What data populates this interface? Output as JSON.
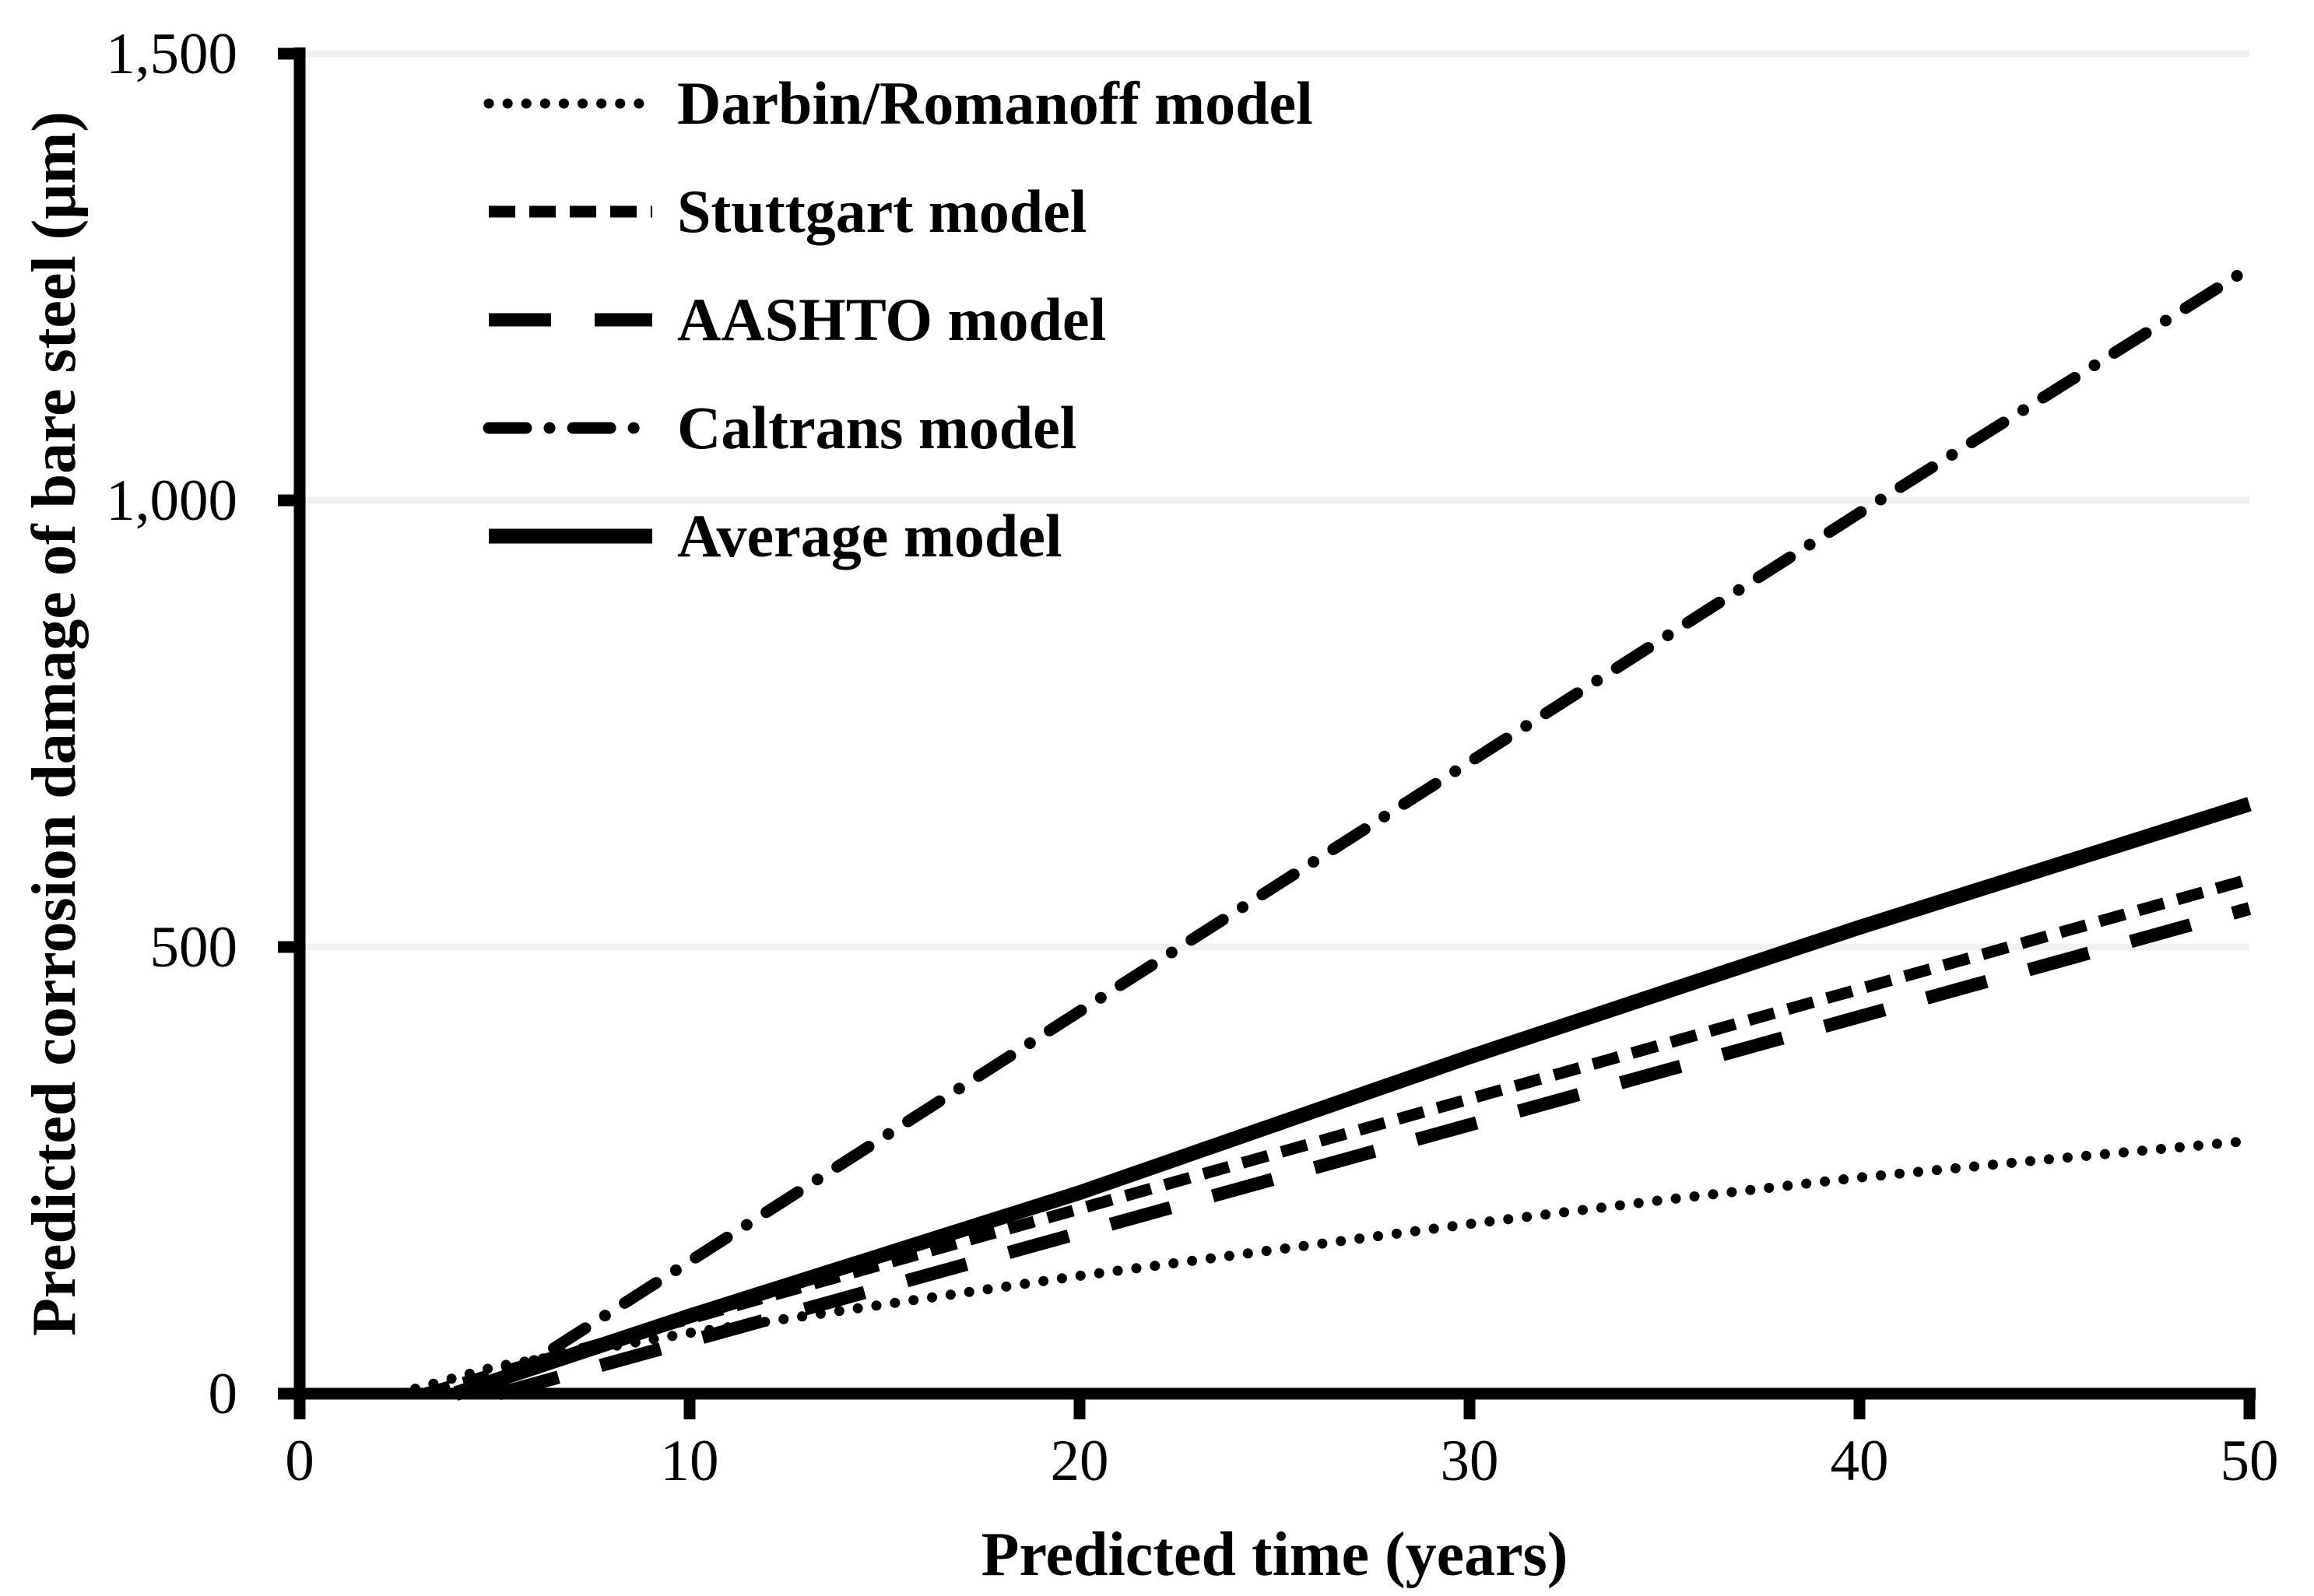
{
  "figure": {
    "background_color": "#ffffff",
    "axis_color": "#000000",
    "gridline_color": "#f0f0f0",
    "line_color": "#000000"
  },
  "chart_data": {
    "type": "line",
    "title": "",
    "xlabel": "Predicted time (years)",
    "ylabel": "Predicted corrosion damage of bare steel (μm)",
    "xlim": [
      0,
      50
    ],
    "ylim": [
      0,
      1500
    ],
    "grid": "horizontal-only",
    "legend_position": "top-left-inside",
    "x_ticks": [
      {
        "value": 0,
        "label": "0"
      },
      {
        "value": 10,
        "label": "10"
      },
      {
        "value": 20,
        "label": "20"
      },
      {
        "value": 30,
        "label": "30"
      },
      {
        "value": 40,
        "label": "40"
      },
      {
        "value": 50,
        "label": "50"
      }
    ],
    "y_ticks": [
      {
        "value": 0,
        "label": "0"
      },
      {
        "value": 500,
        "label": "500"
      },
      {
        "value": 1000,
        "label": "1,000"
      },
      {
        "value": 1500,
        "label": "1,500"
      }
    ],
    "series": [
      {
        "name": "Darbin/Romanoff model",
        "line_style": "dotted",
        "points": [
          [
            2.5,
            0
          ],
          [
            5,
            30
          ],
          [
            10,
            68
          ],
          [
            15,
            100
          ],
          [
            20,
            132
          ],
          [
            25,
            161
          ],
          [
            30,
            190
          ],
          [
            35,
            217
          ],
          [
            40,
            242
          ],
          [
            45,
            263
          ],
          [
            50,
            283
          ]
        ]
      },
      {
        "name": "Stuttgart model",
        "line_style": "dash",
        "points": [
          [
            3.2,
            0
          ],
          [
            10,
            84
          ],
          [
            20,
            207
          ],
          [
            30,
            330
          ],
          [
            40,
            453
          ],
          [
            50,
            576
          ]
        ]
      },
      {
        "name": "AASHTO model",
        "line_style": "long-dash",
        "points": [
          [
            5.1,
            0
          ],
          [
            10,
            59
          ],
          [
            20,
            180
          ],
          [
            30,
            301
          ],
          [
            40,
            422
          ],
          [
            50,
            543
          ]
        ]
      },
      {
        "name": "Caltrans model",
        "line_style": "dash-dot",
        "points": [
          [
            4.7,
            0
          ],
          [
            10,
            148
          ],
          [
            20,
            428
          ],
          [
            30,
            707
          ],
          [
            40,
            986
          ],
          [
            50,
            1260
          ]
        ]
      },
      {
        "name": "Average model",
        "line_style": "solid",
        "points": [
          [
            4.0,
            0
          ],
          [
            10,
            87
          ],
          [
            20,
            225
          ],
          [
            30,
            377
          ],
          [
            40,
            522
          ],
          [
            50,
            660
          ]
        ]
      }
    ]
  }
}
